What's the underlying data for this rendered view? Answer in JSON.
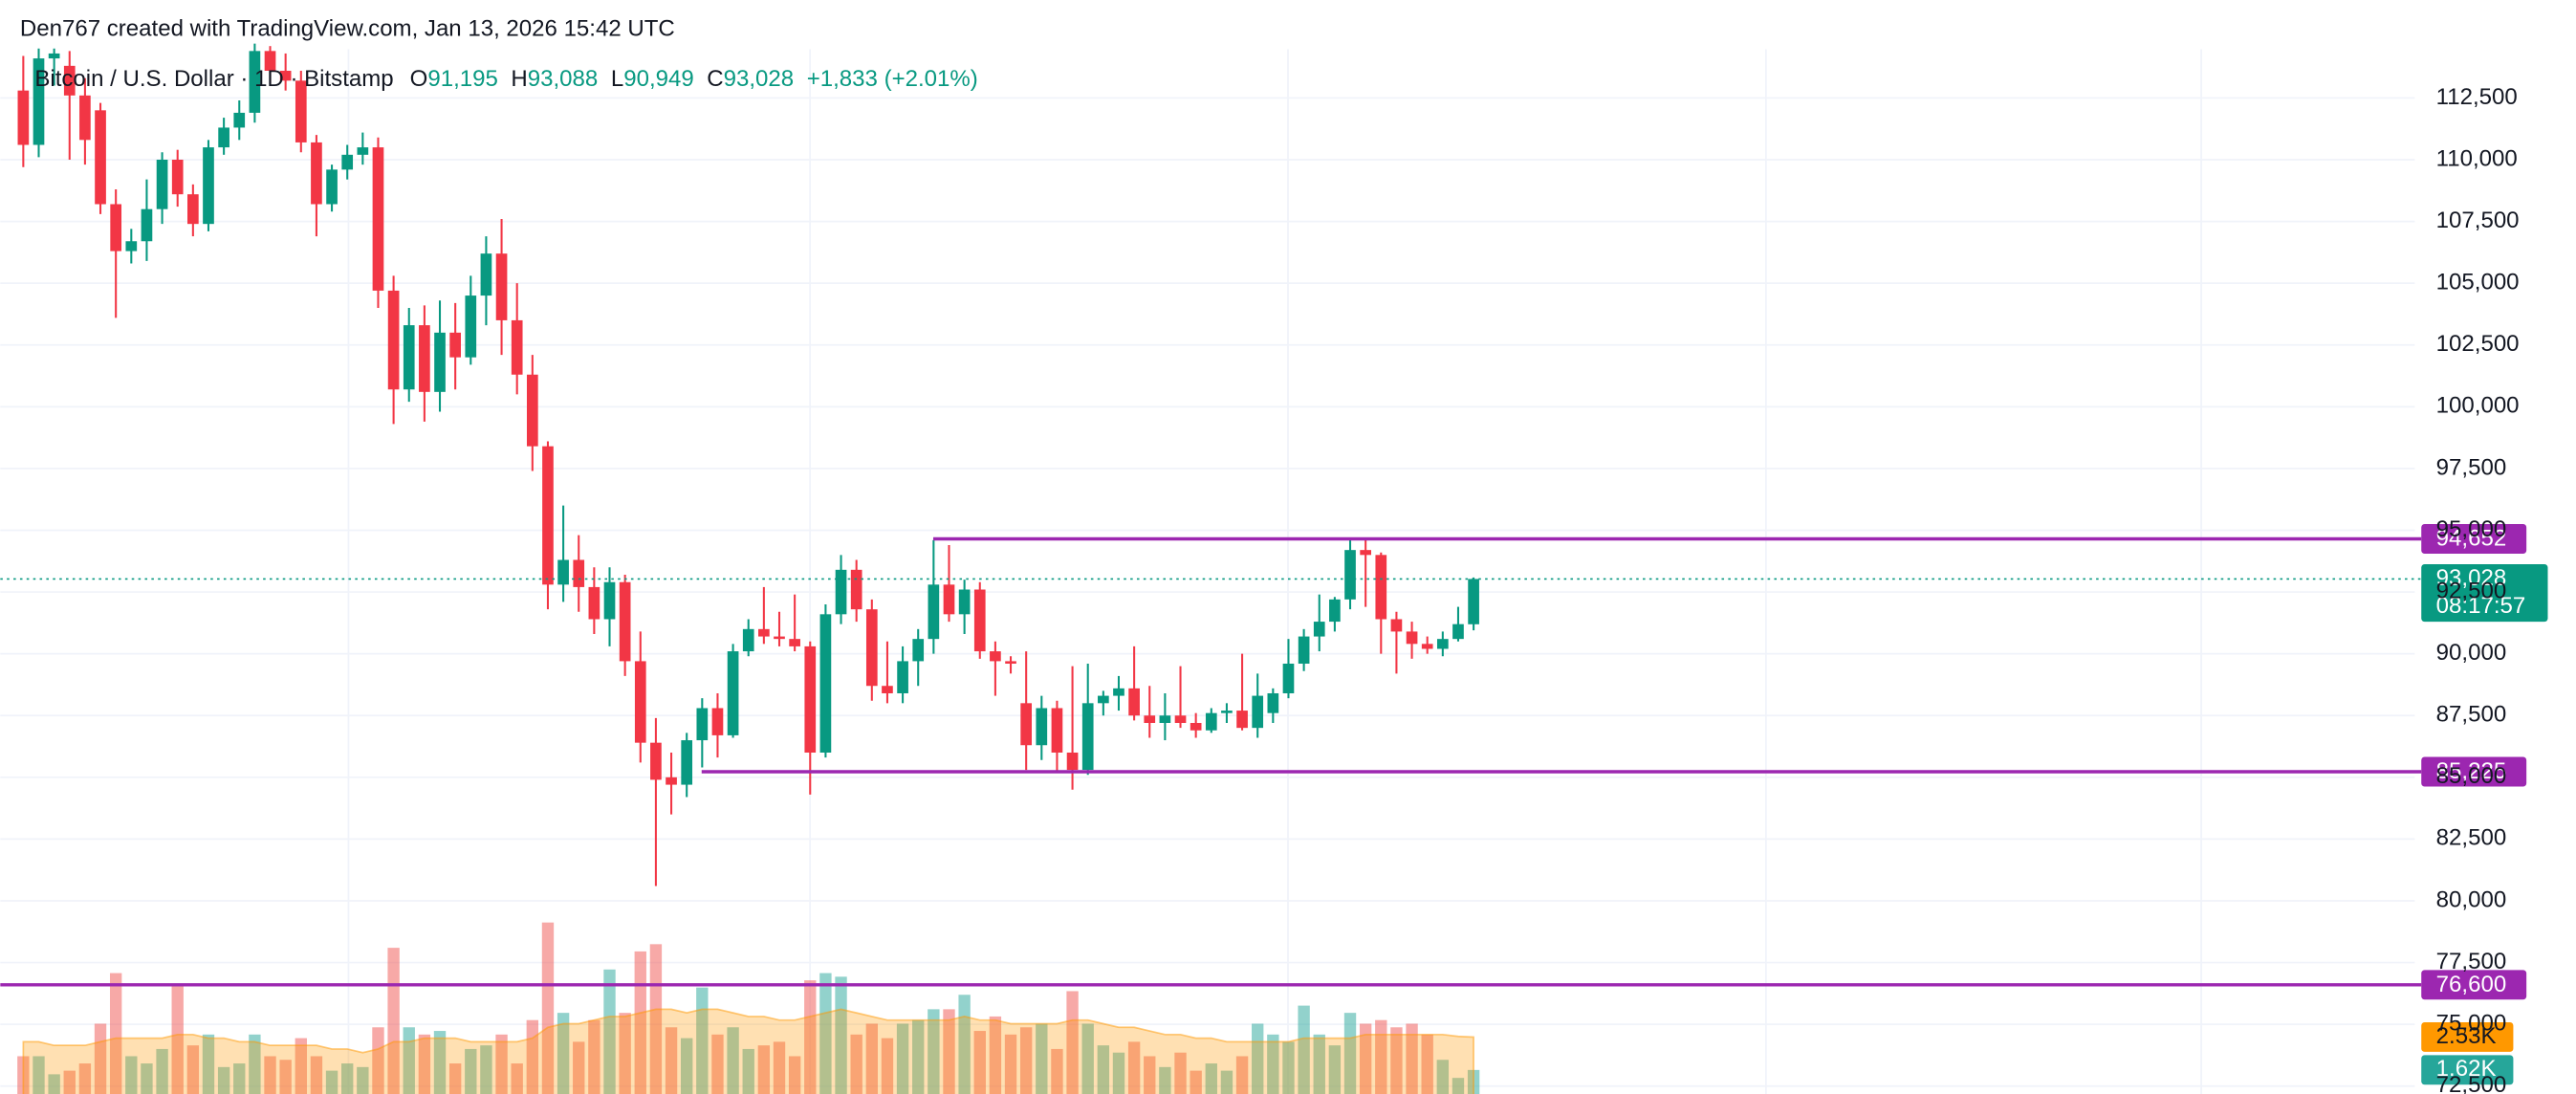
{
  "header": {
    "credit": "Den767 created with TradingView.com, Jan 13, 2026 15:42 UTC",
    "symbol": "Bitcoin / U.S. Dollar · 1D · Bitstamp",
    "o_label": "O",
    "o": "91,195",
    "h_label": "H",
    "h": "93,088",
    "l_label": "L",
    "l": "90,949",
    "c_label": "C",
    "c": "93,028",
    "change": "+1,833 (+2.01%)"
  },
  "chart_data": {
    "type": "candlestick",
    "up_color": "#089981",
    "down_color": "#f23645",
    "grid": true,
    "open": [
      112800,
      110600,
      114100,
      113800,
      112600,
      112000,
      108200,
      106300,
      106700,
      108000,
      110000,
      108600,
      107400,
      110500,
      111300,
      111900,
      114400,
      113600,
      113200,
      110700,
      108200,
      109600,
      110200,
      110500,
      104700,
      100700,
      103300,
      100600,
      103000,
      102000,
      104500,
      106200,
      103500,
      101300,
      98400,
      92800,
      93800,
      92700,
      91400,
      92900,
      89700,
      86400,
      85000,
      84700,
      86500,
      87800,
      86700,
      90100,
      91000,
      90700,
      90600,
      90300,
      86000,
      91600,
      93400,
      91800,
      88700,
      88400,
      89700,
      90600,
      92800,
      91600,
      92600,
      90100,
      89700,
      88000,
      86300,
      87800,
      86000,
      85300,
      88000,
      88300,
      88600,
      87500,
      87200,
      87500,
      87200,
      86900,
      87600,
      87700,
      87000,
      87600,
      88400,
      89600,
      90700,
      91300,
      92200,
      94200,
      94000,
      91400,
      90900,
      90400,
      90200,
      90600,
      91195
    ],
    "high": [
      114200,
      114500,
      114500,
      114400,
      113300,
      112300,
      108800,
      107200,
      109200,
      110300,
      110400,
      109000,
      110800,
      111700,
      112400,
      114700,
      114600,
      114300,
      113600,
      111000,
      109800,
      110600,
      111100,
      110900,
      105300,
      104000,
      104100,
      104300,
      104200,
      105300,
      106900,
      107600,
      105000,
      102100,
      98600,
      96000,
      94800,
      93500,
      93500,
      93200,
      90900,
      87400,
      86000,
      86800,
      88200,
      88400,
      90400,
      91400,
      92700,
      91700,
      92400,
      90500,
      92000,
      94000,
      93800,
      92200,
      90500,
      90300,
      91000,
      94600,
      94400,
      93000,
      92900,
      90500,
      89900,
      90100,
      88300,
      88100,
      89500,
      89600,
      88500,
      89100,
      90300,
      88700,
      88400,
      89500,
      87600,
      87800,
      88000,
      90000,
      89200,
      88600,
      90600,
      91000,
      92400,
      92300,
      94700,
      94600,
      94100,
      91700,
      91300,
      90700,
      90900,
      91900,
      93088
    ],
    "low": [
      109700,
      110100,
      113000,
      110000,
      109800,
      107800,
      103600,
      105800,
      105900,
      107400,
      108100,
      106900,
      107100,
      110200,
      110800,
      111500,
      113100,
      112800,
      110300,
      106900,
      107900,
      109200,
      109800,
      104000,
      99300,
      100200,
      99400,
      99800,
      100700,
      101700,
      103300,
      102100,
      100500,
      97400,
      91800,
      92100,
      91700,
      90800,
      90300,
      89100,
      85600,
      80600,
      83500,
      84200,
      85400,
      85800,
      86600,
      89900,
      90400,
      90300,
      90100,
      84300,
      85800,
      91200,
      91300,
      88100,
      88000,
      88000,
      88700,
      90000,
      91300,
      90800,
      89800,
      88300,
      89200,
      85300,
      85700,
      85200,
      84500,
      85100,
      87500,
      87700,
      87300,
      86600,
      86500,
      87000,
      86600,
      86800,
      87200,
      86900,
      86600,
      87200,
      88200,
      89300,
      90100,
      90900,
      91800,
      91900,
      90000,
      89200,
      89800,
      90000,
      89900,
      90500,
      90949
    ],
    "close": [
      110600,
      114100,
      114300,
      112600,
      110800,
      108200,
      106300,
      106700,
      108000,
      110000,
      108600,
      107400,
      110500,
      111300,
      111900,
      114400,
      113600,
      113200,
      110700,
      108200,
      109600,
      110200,
      110500,
      104700,
      100700,
      103300,
      100600,
      103000,
      102000,
      104500,
      106200,
      103500,
      101300,
      98400,
      92800,
      93800,
      92700,
      91400,
      92900,
      89700,
      86400,
      84900,
      84700,
      86500,
      87800,
      86700,
      90100,
      91000,
      90700,
      90600,
      90300,
      86000,
      91600,
      93400,
      91800,
      88700,
      88400,
      89700,
      90600,
      92800,
      91600,
      92600,
      90100,
      89700,
      89600,
      86300,
      87800,
      86000,
      85300,
      88000,
      88300,
      88600,
      87500,
      87200,
      87500,
      87200,
      86900,
      87600,
      87700,
      87000,
      88300,
      88400,
      89600,
      90700,
      91300,
      92200,
      94200,
      94000,
      91400,
      90900,
      90400,
      90200,
      90600,
      91200,
      93028
    ],
    "volume": [
      2.0,
      2.0,
      1.5,
      1.6,
      1.8,
      2.9,
      4.3,
      2.0,
      1.8,
      2.2,
      4.0,
      2.3,
      2.6,
      1.7,
      1.8,
      2.6,
      2.0,
      1.9,
      2.5,
      2.0,
      1.6,
      1.8,
      1.7,
      2.8,
      5.0,
      2.8,
      2.6,
      2.7,
      1.8,
      2.2,
      2.3,
      2.6,
      1.8,
      3.0,
      5.7,
      3.2,
      2.4,
      3.0,
      4.4,
      3.2,
      4.9,
      5.1,
      2.8,
      2.5,
      3.9,
      2.6,
      2.8,
      2.2,
      2.3,
      2.4,
      2.0,
      4.1,
      4.3,
      4.2,
      2.6,
      2.9,
      2.5,
      2.9,
      3.0,
      3.3,
      3.3,
      3.7,
      2.7,
      3.1,
      2.6,
      2.8,
      2.9,
      2.2,
      3.8,
      2.9,
      2.3,
      2.1,
      2.4,
      2.0,
      1.7,
      2.1,
      1.6,
      1.8,
      1.6,
      2.0,
      2.9,
      2.6,
      2.4,
      3.4,
      2.6,
      2.3,
      3.2,
      2.9,
      3.0,
      2.8,
      2.9,
      2.6,
      1.9,
      1.4,
      1.62
    ],
    "volume_ma": [
      2.4,
      2.4,
      2.3,
      2.3,
      2.3,
      2.4,
      2.5,
      2.5,
      2.5,
      2.5,
      2.6,
      2.6,
      2.5,
      2.5,
      2.4,
      2.4,
      2.3,
      2.3,
      2.3,
      2.3,
      2.2,
      2.2,
      2.1,
      2.2,
      2.4,
      2.4,
      2.5,
      2.5,
      2.5,
      2.4,
      2.4,
      2.4,
      2.4,
      2.5,
      2.8,
      2.9,
      2.9,
      3.0,
      3.1,
      3.1,
      3.2,
      3.3,
      3.3,
      3.2,
      3.3,
      3.3,
      3.2,
      3.1,
      3.1,
      3.0,
      3.0,
      3.1,
      3.2,
      3.3,
      3.2,
      3.1,
      3.0,
      3.0,
      3.0,
      3.0,
      3.0,
      3.1,
      3.0,
      3.0,
      2.9,
      2.9,
      2.9,
      2.9,
      3.0,
      3.0,
      2.9,
      2.8,
      2.8,
      2.7,
      2.6,
      2.6,
      2.5,
      2.5,
      2.4,
      2.4,
      2.4,
      2.4,
      2.4,
      2.5,
      2.5,
      2.5,
      2.5,
      2.6,
      2.6,
      2.6,
      2.6,
      2.6,
      2.6,
      2.55,
      2.53
    ],
    "volume_label": "1.62K",
    "volume_ma_label": "2.53K",
    "volume_color": "#26a69a",
    "volume_down_color": "#ef5350",
    "volume_ma_color": "#ff9800",
    "ylim": [
      72180,
      114470
    ],
    "yticks": [
      {
        "value": 72500,
        "label": "72,500"
      },
      {
        "value": 75000,
        "label": "75,000"
      },
      {
        "value": 77500,
        "label": "77,500"
      },
      {
        "value": 80000,
        "label": "80,000"
      },
      {
        "value": 82500,
        "label": "82,500"
      },
      {
        "value": 85000,
        "label": "85,000"
      },
      {
        "value": 87500,
        "label": "87,500"
      },
      {
        "value": 90000,
        "label": "90,000"
      },
      {
        "value": 92500,
        "label": "92,500"
      },
      {
        "value": 95000,
        "label": "95,000"
      },
      {
        "value": 97500,
        "label": "97,500"
      },
      {
        "value": 100000,
        "label": "100,000"
      },
      {
        "value": 102500,
        "label": "102,500"
      },
      {
        "value": 105000,
        "label": "105,000"
      },
      {
        "value": 107500,
        "label": "107,500"
      },
      {
        "value": 110000,
        "label": "110,000"
      },
      {
        "value": 112500,
        "label": "112,500"
      }
    ],
    "levels": [
      {
        "value": 94652,
        "label": "94,652"
      },
      {
        "value": 85225,
        "label": "85,225"
      },
      {
        "value": 76600,
        "label": "76,600"
      }
    ],
    "level_color": "#9c27b0",
    "last_price": {
      "value": 93028,
      "label": "93,028",
      "countdown": "08:17:57"
    }
  }
}
